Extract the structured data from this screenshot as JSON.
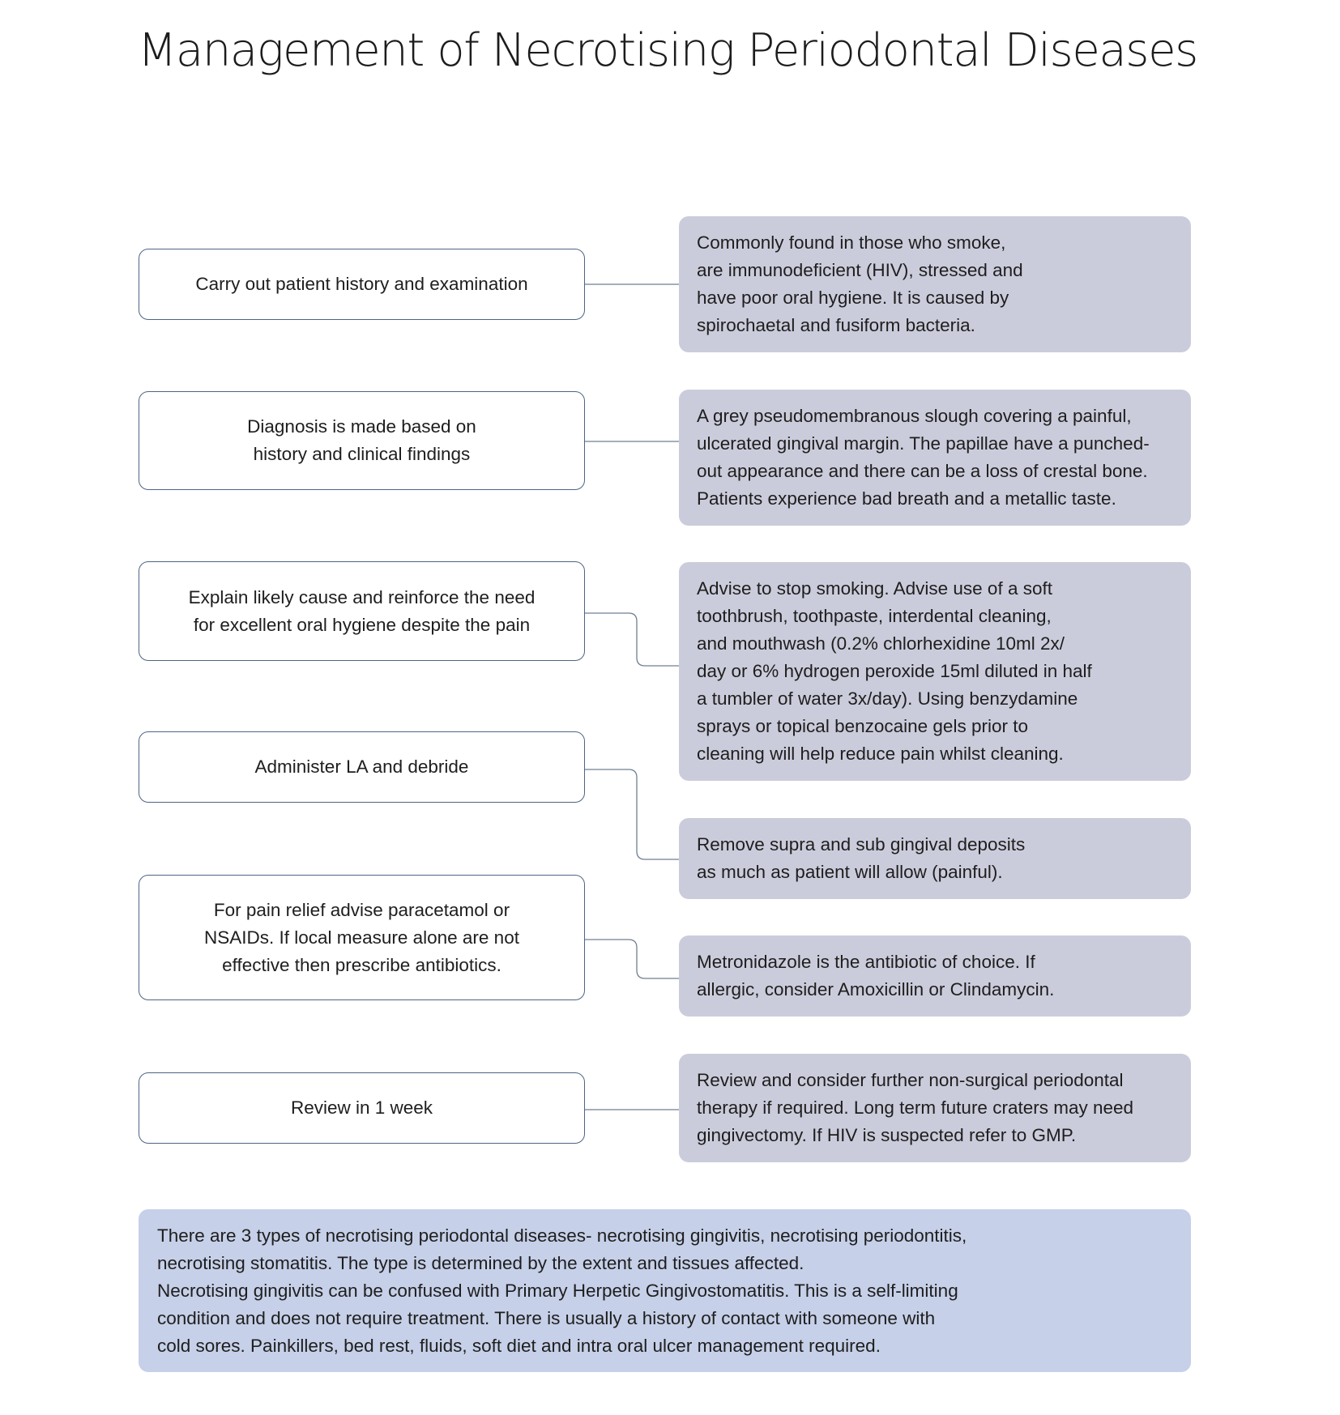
{
  "title": "Management of Necrotising Periodontal Diseases",
  "steps": [
    "Carry out patient history and examination",
    "Diagnosis is made based on\nhistory and clinical findings",
    "Explain likely cause and reinforce the need\nfor excellent oral hygiene despite the pain",
    "Administer LA and debride",
    "For pain relief advise paracetamol or\nNSAIDs. If local measure alone are not\neffective then prescribe antibiotics.",
    "Review in 1 week"
  ],
  "notes": [
    "Commonly found in those who smoke,\nare immunodeficient (HIV), stressed and\nhave poor oral hygiene. It is caused by\nspirochaetal and fusiform bacteria.",
    "A grey pseudomembranous slough covering a painful,\nulcerated gingival margin. The papillae have a punched-\nout appearance and there can be a loss of crestal bone.\nPatients experience bad breath and a metallic taste.",
    "Advise to stop smoking. Advise use of a soft\ntoothbrush, toothpaste, interdental cleaning,\nand mouthwash (0.2% chlorhexidine 10ml 2x/\nday or 6% hydrogen peroxide 15ml diluted in half\na tumbler of water 3x/day). Using benzydamine\nsprays or topical benzocaine gels prior to\ncleaning will help reduce pain whilst cleaning.",
    "Remove supra and sub gingival deposits\nas much as patient will allow (painful).",
    "Metronidazole is the antibiotic of choice. If\nallergic, consider Amoxicillin or Clindamycin.",
    "Review and consider further non-surgical periodontal\ntherapy if required. Long term future craters may need\ngingivectomy. If HIV is suspected refer to GMP."
  ],
  "footer": "There are 3 types of necrotising periodontal diseases- necrotising gingivitis, necrotising periodontitis,\nnecrotising stomatitis. The type is determined by the extent and tissues affected.\nNecrotising gingivitis can be confused with Primary Herpetic Gingivostomatitis. This is a self-limiting\ncondition and does not require treatment. There is usually a history of contact with someone with\ncold sores. Painkillers, bed rest, fluids, soft diet and intra oral ulcer management required.",
  "colors": {
    "step_border": "#4d6583",
    "note_fill": "#cbccdb",
    "footer_fill": "#c6d0e8",
    "connector": "#6f7f93"
  }
}
